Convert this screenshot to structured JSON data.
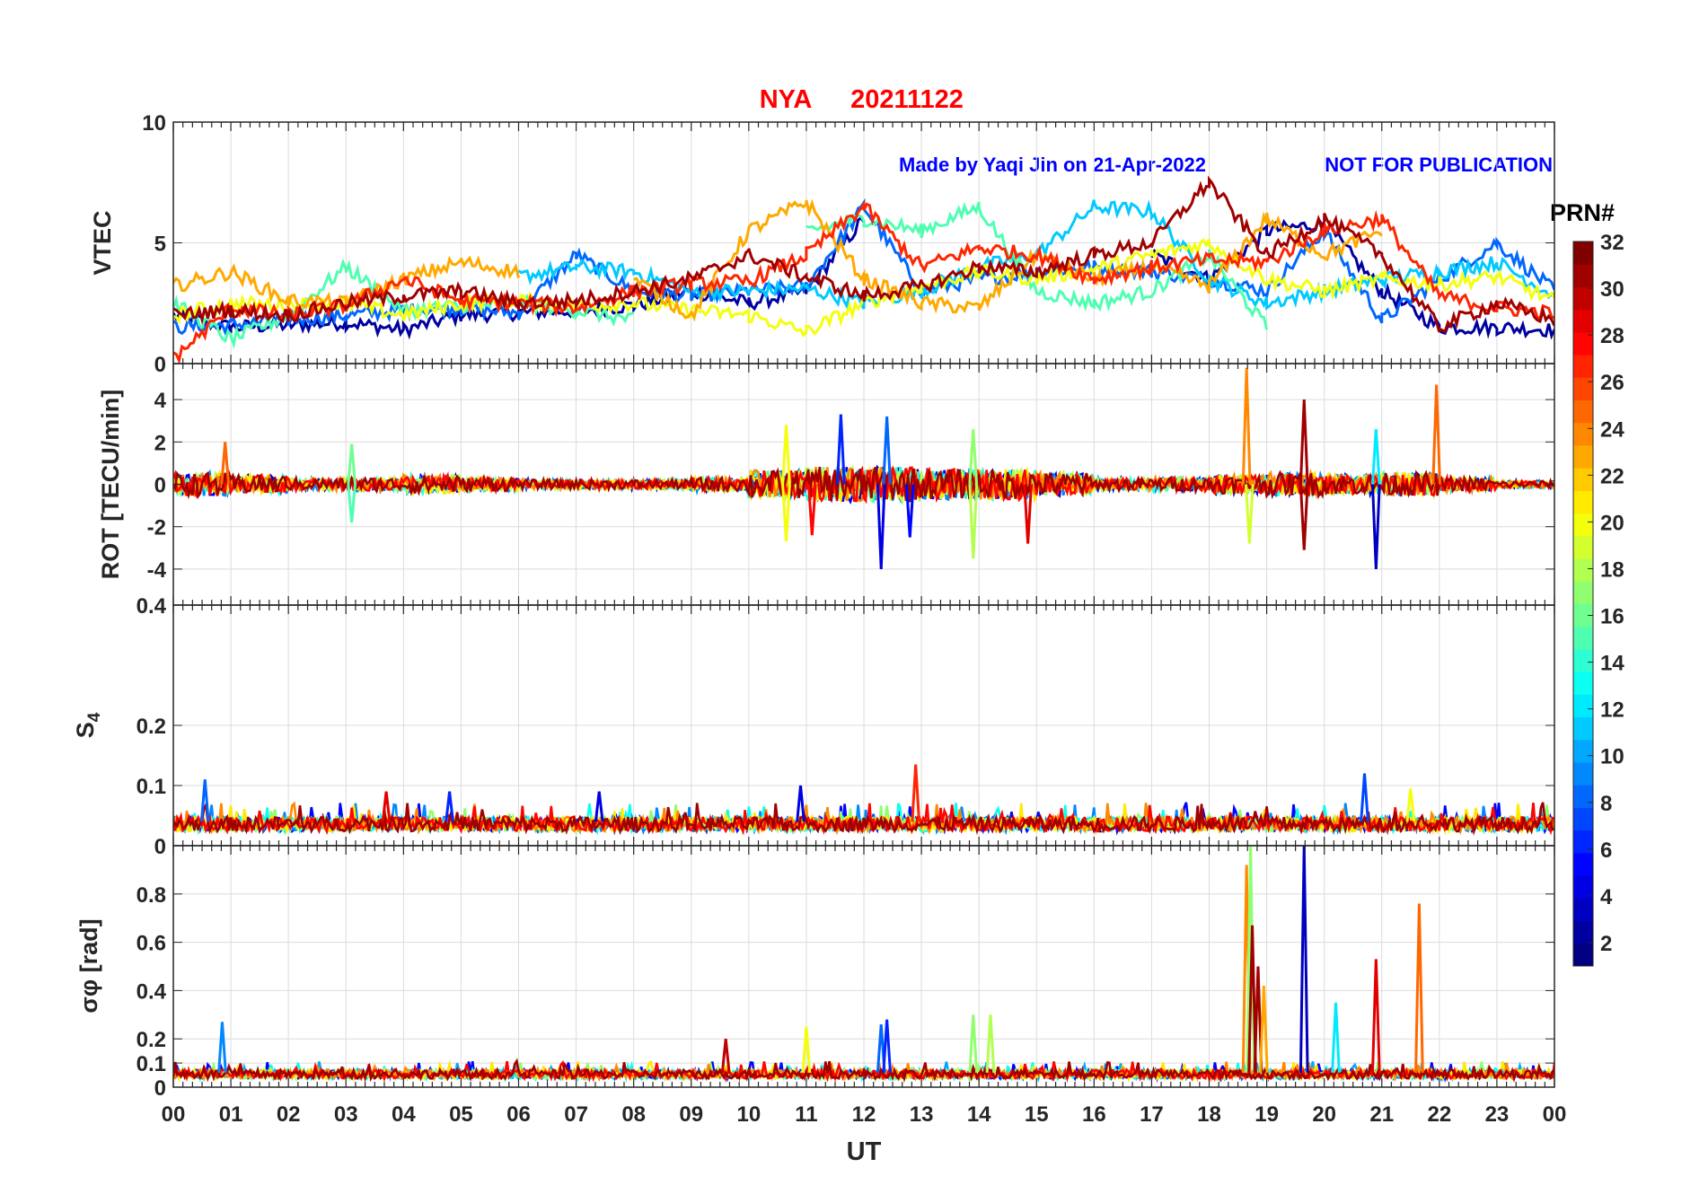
{
  "chart_data": {
    "type": "line",
    "title_station": "NYA",
    "title_date": "20211122",
    "annotation_author": "Made by Yaqi Jin on 21-Apr-2022",
    "annotation_notice": "NOT FOR PUBLICATION",
    "xlabel": "UT",
    "xlim": [
      0,
      24
    ],
    "xtick_labels": [
      "00",
      "01",
      "02",
      "03",
      "04",
      "05",
      "06",
      "07",
      "08",
      "09",
      "10",
      "11",
      "12",
      "13",
      "14",
      "15",
      "16",
      "17",
      "18",
      "19",
      "20",
      "21",
      "22",
      "23",
      "00"
    ],
    "colorbar": {
      "label": "PRN#",
      "range": [
        1,
        32
      ],
      "colormap": "jet",
      "ticks": [
        "2",
        "4",
        "6",
        "8",
        "10",
        "12",
        "14",
        "16",
        "18",
        "20",
        "22",
        "24",
        "26",
        "28",
        "30",
        "32"
      ]
    },
    "panels": [
      {
        "id": "vtec",
        "ylabel": "VTEC",
        "ylim": [
          0,
          10
        ],
        "ytick_values": [
          0,
          5,
          10
        ],
        "ytick_labels": [
          "0",
          "5",
          "10"
        ],
        "series": [
          {
            "prn": 2,
            "values": [
              2.0,
              1.5,
              1.6,
              1.7,
              1.4,
              2.0,
              2.1,
              2.2,
              2.4,
              3.0,
              2.5,
              3.0,
              6.0,
              null,
              null,
              null,
              null,
              4.5,
              3.5,
              5.5,
              5.8,
              3.0,
              1.5,
              1.5,
              1.4
            ]
          },
          {
            "prn": 8,
            "values": [
              1.5,
              1.6,
              1.8,
              2.0,
              2.2,
              2.3,
              2.1,
              4.5,
              3.0,
              2.8,
              3.0,
              3.2,
              6.5,
              3.0,
              3.5,
              3.8,
              4.0,
              3.8,
              3.5,
              3.0,
              5.5,
              1.8,
              3.5,
              5.0,
              3.0
            ]
          },
          {
            "prn": 11,
            "values": [
              null,
              null,
              null,
              null,
              null,
              null,
              3.6,
              4.0,
              3.8,
              3.0,
              3.0,
              3.1,
              2.5,
              3.0,
              4.0,
              4.5,
              6.5,
              6.3,
              3.5,
              2.5,
              3.0,
              3.5,
              3.8,
              4.2,
              2.8
            ]
          },
          {
            "prn": 15,
            "values": [
              2.5,
              1.0,
              2.0,
              4.0,
              2.2,
              2.4,
              2.5,
              2.2,
              1.8,
              null,
              null,
              5.5,
              6.0,
              5.5,
              6.5,
              3.0,
              2.5,
              3.0,
              4.5,
              1.5,
              null,
              null,
              null,
              null,
              null
            ]
          },
          {
            "prn": 20,
            "values": [
              2.0,
              2.5,
              2.4,
              2.5,
              2.0,
              2.5,
              2.6,
              2.4,
              2.5,
              2.2,
              2.0,
              1.3,
              2.5,
              3.2,
              3.8,
              3.5,
              3.9,
              4.5,
              5.0,
              3.5,
              3.0,
              3.5,
              3.3,
              3.6,
              2.6
            ]
          },
          {
            "prn": 23,
            "values": [
              3.2,
              3.8,
              2.6,
              2.5,
              3.5,
              4.2,
              3.8,
              null,
              3.5,
              2.0,
              5.5,
              6.7,
              3.5,
              2.5,
              2.3,
              4.5,
              3.5,
              4.0,
              3.2,
              6.0,
              4.5,
              5.5,
              null,
              null,
              null
            ]
          },
          {
            "prn": 27,
            "values": [
              0.2,
              2.3,
              2.0,
              2.4,
              3.5,
              2.6,
              2.5,
              2.3,
              3.0,
              3.3,
              3.4,
              4.5,
              6.5,
              4.0,
              4.8,
              4.5,
              3.5,
              4.0,
              4.3,
              4.2,
              5.5,
              6.0,
              2.8,
              2.3,
              2.1
            ]
          },
          {
            "prn": 31,
            "values": [
              2.0,
              2.2,
              2.0,
              2.5,
              2.8,
              3.0,
              2.5,
              2.6,
              3.0,
              3.5,
              4.5,
              3.6,
              2.8,
              3.2,
              4.0,
              3.8,
              4.5,
              5.0,
              7.5,
              4.5,
              6.0,
              4.5,
              1.5,
              2.5,
              1.8
            ]
          }
        ]
      },
      {
        "id": "rot",
        "ylabel": "ROT [TECU/min]",
        "ylim": [
          -5.7,
          5.7
        ],
        "ytick_values": [
          -4,
          -2,
          0,
          2,
          4
        ],
        "ytick_labels": [
          "-4",
          "-2",
          "0",
          "2",
          "4"
        ],
        "noise_amplitude_hourly": [
          1.0,
          0.8,
          0.5,
          0.6,
          0.8,
          0.6,
          0.4,
          0.4,
          0.4,
          0.6,
          1.2,
          1.5,
          1.5,
          1.3,
          1.3,
          1.0,
          0.5,
          0.6,
          0.8,
          1.0,
          0.9,
          1.0,
          0.6,
          0.3
        ],
        "baseline_prns": [
          4,
          9,
          14,
          18,
          21,
          24,
          28,
          31
        ],
        "spikes": [
          {
            "t": 0.9,
            "v": 2.0,
            "prn": 25
          },
          {
            "t": 3.1,
            "v": -1.8,
            "prn": 15
          },
          {
            "t": 3.1,
            "v": 1.9,
            "prn": 16
          },
          {
            "t": 10.65,
            "v": 2.8,
            "prn": 20
          },
          {
            "t": 10.65,
            "v": -2.7,
            "prn": 20
          },
          {
            "t": 11.6,
            "v": 3.3,
            "prn": 6
          },
          {
            "t": 12.3,
            "v": -4.0,
            "prn": 4
          },
          {
            "t": 12.4,
            "v": 3.2,
            "prn": 8
          },
          {
            "t": 12.8,
            "v": -2.5,
            "prn": 5
          },
          {
            "t": 11.1,
            "v": -2.4,
            "prn": 28
          },
          {
            "t": 13.9,
            "v": -3.5,
            "prn": 18
          },
          {
            "t": 13.9,
            "v": 2.6,
            "prn": 17
          },
          {
            "t": 14.85,
            "v": -2.8,
            "prn": 29
          },
          {
            "t": 18.65,
            "v": 5.5,
            "prn": 24
          },
          {
            "t": 18.7,
            "v": -2.8,
            "prn": 19
          },
          {
            "t": 19.65,
            "v": 4.0,
            "prn": 31
          },
          {
            "t": 19.65,
            "v": -3.1,
            "prn": 31
          },
          {
            "t": 20.9,
            "v": -4.0,
            "prn": 3
          },
          {
            "t": 20.9,
            "v": 2.6,
            "prn": 12
          },
          {
            "t": 21.95,
            "v": 4.7,
            "prn": 25
          }
        ]
      },
      {
        "id": "s4",
        "ylabel": "S4",
        "ylim": [
          0,
          0.4
        ],
        "ytick_values": [
          0,
          0.1,
          0.2,
          0.4
        ],
        "ytick_labels": [
          "0",
          "0.1",
          "0.2",
          "0.4"
        ],
        "baseline": 0.04,
        "baseline_prns": [
          5,
          9,
          13,
          17,
          21,
          24,
          28,
          31
        ],
        "spikes": [
          {
            "t": 0.55,
            "v": 0.11,
            "prn": 8
          },
          {
            "t": 3.7,
            "v": 0.09,
            "prn": 29
          },
          {
            "t": 4.8,
            "v": 0.09,
            "prn": 6
          },
          {
            "t": 7.4,
            "v": 0.09,
            "prn": 4
          },
          {
            "t": 10.9,
            "v": 0.1,
            "prn": 4
          },
          {
            "t": 12.9,
            "v": 0.135,
            "prn": 27
          },
          {
            "t": 20.7,
            "v": 0.12,
            "prn": 7
          },
          {
            "t": 21.5,
            "v": 0.095,
            "prn": 20
          }
        ]
      },
      {
        "id": "sigma_phi",
        "ylabel": "σφ [rad]",
        "ylim": [
          0,
          1.0
        ],
        "ytick_values": [
          0,
          0.1,
          0.2,
          0.4,
          0.6,
          0.8
        ],
        "ytick_labels": [
          "0",
          "0.1",
          "0.2",
          "0.4",
          "0.6",
          "0.8"
        ],
        "baseline": 0.06,
        "baseline_prns": [
          5,
          10,
          13,
          17,
          21,
          24,
          28,
          31
        ],
        "spikes": [
          {
            "t": 0.85,
            "v": 0.27,
            "prn": 9
          },
          {
            "t": 9.6,
            "v": 0.2,
            "prn": 30
          },
          {
            "t": 11.0,
            "v": 0.25,
            "prn": 20
          },
          {
            "t": 12.3,
            "v": 0.26,
            "prn": 8
          },
          {
            "t": 12.4,
            "v": 0.28,
            "prn": 6
          },
          {
            "t": 13.9,
            "v": 0.3,
            "prn": 17
          },
          {
            "t": 14.2,
            "v": 0.3,
            "prn": 18
          },
          {
            "t": 18.65,
            "v": 0.92,
            "prn": 24
          },
          {
            "t": 18.72,
            "v": 1.0,
            "prn": 17
          },
          {
            "t": 18.75,
            "v": 0.67,
            "prn": 31
          },
          {
            "t": 18.85,
            "v": 0.5,
            "prn": 31
          },
          {
            "t": 18.95,
            "v": 0.42,
            "prn": 23
          },
          {
            "t": 19.65,
            "v": 1.0,
            "prn": 3
          },
          {
            "t": 20.2,
            "v": 0.35,
            "prn": 12
          },
          {
            "t": 20.9,
            "v": 0.53,
            "prn": 29
          },
          {
            "t": 21.65,
            "v": 0.76,
            "prn": 25
          }
        ]
      }
    ]
  }
}
